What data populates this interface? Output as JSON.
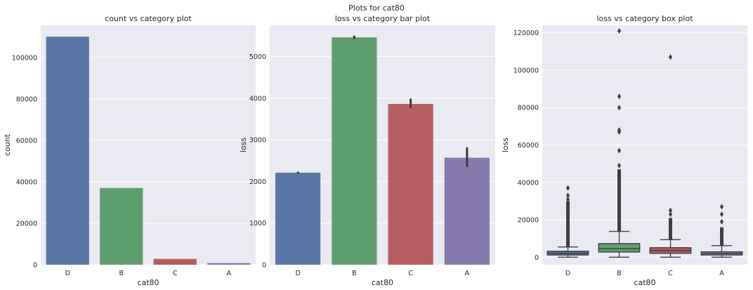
{
  "suptitle": "Plots for cat80",
  "colors": {
    "panel_bg": "#EAEAF2",
    "grid": "#FFFFFF",
    "text": "#262626",
    "tick_text": "#262626",
    "errorbar": "#3A3A3A",
    "box_edge": "#3F3F3F",
    "bar_D": "#5875A4",
    "bar_B": "#5F9E6E",
    "bar_C": "#B55D60",
    "bar_A": "#857AAB"
  },
  "chart_data": [
    {
      "type": "bar",
      "title": "count vs category plot",
      "xlabel": "cat80",
      "ylabel": "count",
      "categories": [
        "D",
        "B",
        "C",
        "A"
      ],
      "values": [
        110000,
        37000,
        2800,
        800
      ],
      "ylim": [
        0,
        115500
      ],
      "yticks": [
        0,
        20000,
        40000,
        60000,
        80000,
        100000
      ],
      "ytick_labels": [
        "0",
        "20000",
        "40000",
        "60000",
        "80000",
        "100000"
      ],
      "grid": true
    },
    {
      "type": "bar",
      "title": "loss vs category bar plot",
      "xlabel": "cat80",
      "ylabel": "loss",
      "categories": [
        "D",
        "B",
        "C",
        "A"
      ],
      "values": [
        2210,
        5460,
        3860,
        2570
      ],
      "error_low": [
        2185,
        5420,
        3760,
        2350
      ],
      "error_high": [
        2235,
        5500,
        3990,
        2820
      ],
      "ylim": [
        0,
        5750
      ],
      "yticks": [
        0,
        1000,
        2000,
        3000,
        4000,
        5000
      ],
      "ytick_labels": [
        "0",
        "1000",
        "2000",
        "3000",
        "4000",
        "5000"
      ],
      "grid": true
    },
    {
      "type": "box",
      "title": "loss vs category box plot",
      "xlabel": "cat80",
      "ylabel": "loss",
      "categories": [
        "D",
        "B",
        "C",
        "A"
      ],
      "boxes": [
        {
          "min": 0,
          "q1": 1200,
          "median": 2100,
          "q3": 3200,
          "max": 5500,
          "flier_band": [
            5500,
            30000
          ],
          "outliers": [
            31000,
            33000,
            37000
          ]
        },
        {
          "min": 0,
          "q1": 2800,
          "median": 4500,
          "q3": 7300,
          "max": 13800,
          "flier_band": [
            13800,
            47000
          ],
          "outliers": [
            49000,
            57000,
            67000,
            68000,
            80000,
            86000,
            121000
          ]
        },
        {
          "min": 0,
          "q1": 2100,
          "median": 3600,
          "q3": 5100,
          "max": 9400,
          "flier_band": [
            9400,
            21000
          ],
          "outliers": [
            23000,
            25000,
            107000
          ]
        },
        {
          "min": 0,
          "q1": 1200,
          "median": 2000,
          "q3": 2900,
          "max": 6200,
          "flier_band": [
            6200,
            16000
          ],
          "outliers": [
            19000,
            23000,
            27000
          ]
        }
      ],
      "ylim": [
        -4000,
        124000
      ],
      "yticks": [
        0,
        20000,
        40000,
        60000,
        80000,
        100000,
        120000
      ],
      "ytick_labels": [
        "0",
        "20000",
        "40000",
        "60000",
        "80000",
        "100000",
        "120000"
      ],
      "grid": true
    }
  ]
}
